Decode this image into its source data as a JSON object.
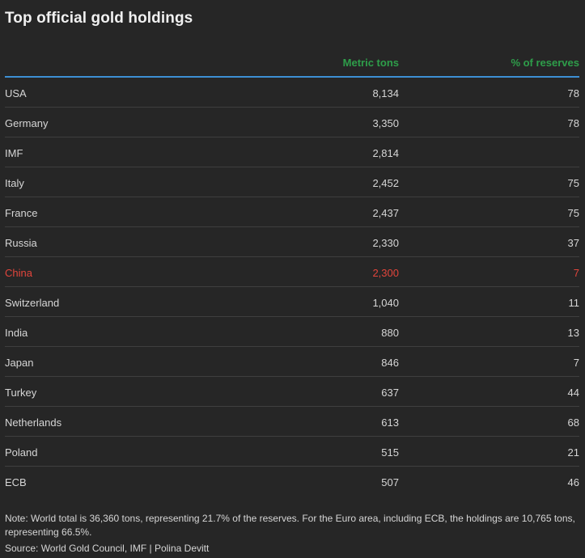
{
  "title": "Top official gold holdings",
  "columns": {
    "country": "",
    "tons": "Metric tons",
    "pct": "% of reserves"
  },
  "colors": {
    "header_text": "#2e9e4a",
    "header_rule": "#3d8fd4",
    "highlight_row": "#e2453c"
  },
  "chart_data": {
    "type": "table",
    "title": "Top official gold holdings",
    "columns": [
      "",
      "Metric tons",
      "% of reserves"
    ],
    "rows": [
      {
        "country": "USA",
        "tons": "8,134",
        "pct": "78",
        "highlight": false
      },
      {
        "country": "Germany",
        "tons": "3,350",
        "pct": "78",
        "highlight": false
      },
      {
        "country": "IMF",
        "tons": "2,814",
        "pct": "",
        "highlight": false
      },
      {
        "country": "Italy",
        "tons": "2,452",
        "pct": "75",
        "highlight": false
      },
      {
        "country": "France",
        "tons": "2,437",
        "pct": "75",
        "highlight": false
      },
      {
        "country": "Russia",
        "tons": "2,330",
        "pct": "37",
        "highlight": false
      },
      {
        "country": "China",
        "tons": "2,300",
        "pct": "7",
        "highlight": true
      },
      {
        "country": "Switzerland",
        "tons": "1,040",
        "pct": "11",
        "highlight": false
      },
      {
        "country": "India",
        "tons": "880",
        "pct": "13",
        "highlight": false
      },
      {
        "country": "Japan",
        "tons": "846",
        "pct": "7",
        "highlight": false
      },
      {
        "country": "Turkey",
        "tons": "637",
        "pct": "44",
        "highlight": false
      },
      {
        "country": "Netherlands",
        "tons": "613",
        "pct": "68",
        "highlight": false
      },
      {
        "country": "Poland",
        "tons": "515",
        "pct": "21",
        "highlight": false
      },
      {
        "country": "ECB",
        "tons": "507",
        "pct": "46",
        "highlight": false
      }
    ]
  },
  "note": "Note: World total is 36,360 tons, representing 21.7% of the reserves. For the Euro area, including ECB, the holdings are 10,765 tons, representing 66.5%.",
  "source": "Source: World Gold Council, IMF | Polina Devitt"
}
